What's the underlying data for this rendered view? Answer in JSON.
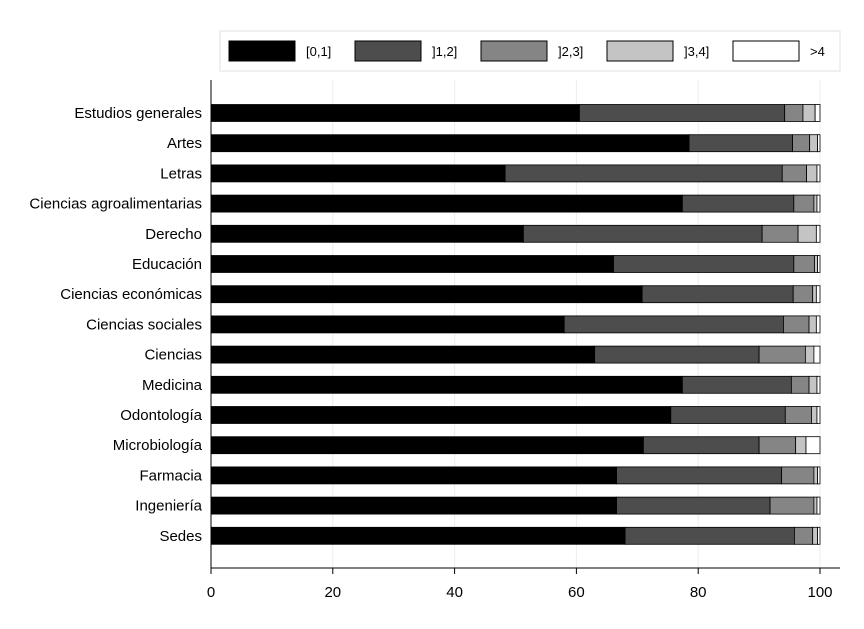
{
  "chart_data": {
    "type": "bar",
    "orientation": "horizontal",
    "stacked": true,
    "categories": [
      "Estudios generales",
      "Artes",
      "Letras",
      "Ciencias agroalimentarias",
      "Derecho",
      "Educación",
      "Ciencias económicas",
      "Ciencias sociales",
      "Ciencias",
      "Medicina",
      "Odontología",
      "Microbiología",
      "Farmacia",
      "Ingeniería",
      "Sedes"
    ],
    "series": [
      {
        "name": "[0,1]",
        "color": "#000000",
        "values": [
          60.5,
          78.5,
          48.3,
          77.4,
          51.3,
          66.1,
          70.8,
          58.0,
          63.0,
          77.4,
          75.5,
          71.0,
          66.6,
          66.6,
          68.0
        ]
      },
      {
        "name": "]1,2]",
        "color": "#4d4d4d",
        "values": [
          33.7,
          17.0,
          45.5,
          18.3,
          39.2,
          29.6,
          24.8,
          36.0,
          27.0,
          17.9,
          18.8,
          19.0,
          27.1,
          25.2,
          27.8
        ]
      },
      {
        "name": "]2,3]",
        "color": "#858585",
        "values": [
          3.0,
          2.8,
          4.0,
          3.3,
          5.9,
          3.4,
          3.2,
          4.2,
          7.6,
          2.9,
          4.3,
          6.0,
          5.3,
          7.2,
          3.0
        ]
      },
      {
        "name": "]3,4]",
        "color": "#c4c4c4",
        "values": [
          2.0,
          1.3,
          1.7,
          0.5,
          3.0,
          0.5,
          0.6,
          1.2,
          1.4,
          1.3,
          0.9,
          1.7,
          0.6,
          0.5,
          0.8
        ]
      },
      {
        "name": ">4",
        "color": "#ffffff",
        "values": [
          0.8,
          0.4,
          0.5,
          0.5,
          0.6,
          0.4,
          0.6,
          0.6,
          1.0,
          0.5,
          0.5,
          2.3,
          0.4,
          0.5,
          0.4
        ]
      }
    ],
    "xlim": [
      0,
      100
    ],
    "xticks": [
      0,
      20,
      40,
      60,
      80,
      100
    ],
    "grid": true,
    "legend_position": "top"
  }
}
